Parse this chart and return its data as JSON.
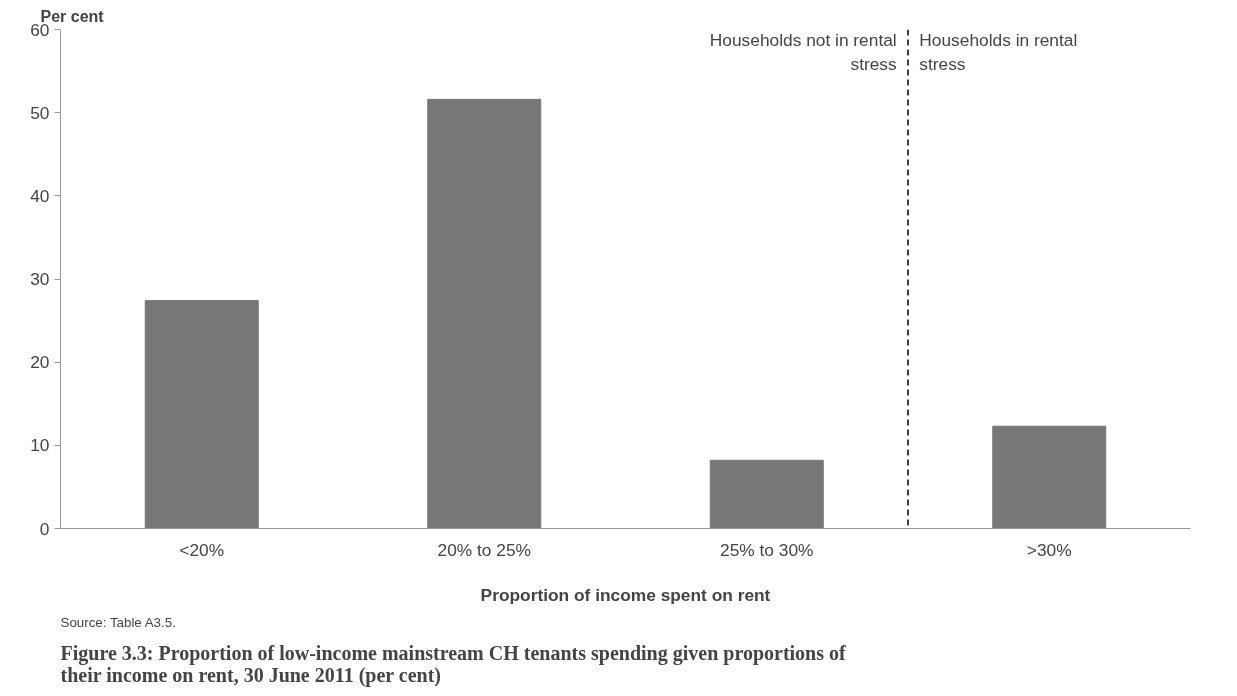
{
  "chart_data": {
    "type": "bar",
    "title": "Figure 3.3: Proportion of low-income mainstream CH tenants spending given proportions of their income on rent, 30 June 2011 (per cent)",
    "xlabel": "Proportion of income spent on rent",
    "ylabel": "Per cent",
    "categories": [
      "<20%",
      "20% to 25%",
      "25% to 30%",
      ">30%"
    ],
    "values": [
      27.4,
      51.6,
      8.2,
      12.3
    ],
    "color": "#777777",
    "ylim": [
      0,
      60
    ],
    "yticks": [
      0,
      10,
      20,
      30,
      40,
      50,
      60
    ],
    "grid": false,
    "annotations": [
      "Households not in rental stress",
      "Households in rental stress",
      "Source: Table A3.5."
    ]
  }
}
